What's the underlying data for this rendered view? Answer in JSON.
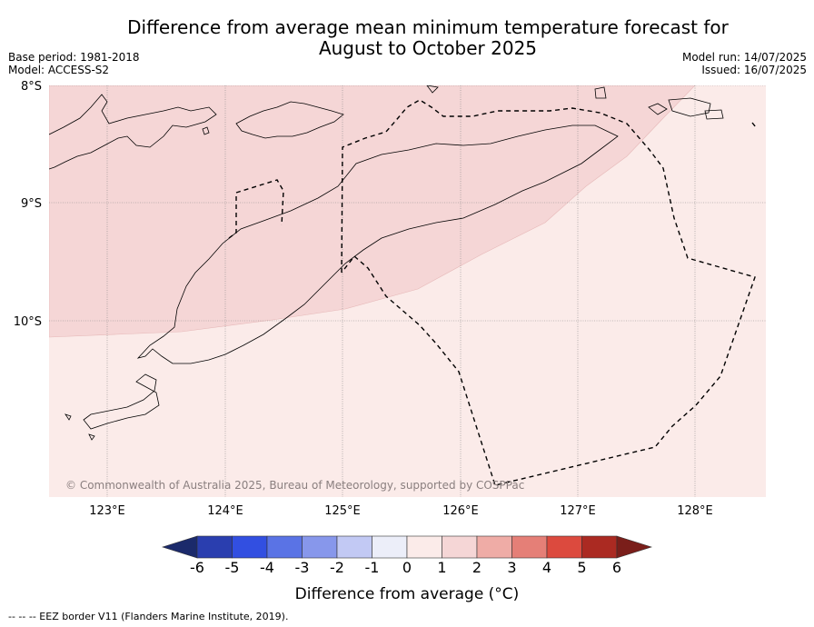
{
  "header": {
    "title_line1": "Difference from average mean minimum temperature forecast for",
    "title_line2": "August to October 2025",
    "base_period": "Base period: 1981-2018",
    "model": "Model: ACCESS-S2",
    "model_run": "Model run: 14/07/2025",
    "issued": "Issued: 16/07/2025"
  },
  "map": {
    "lat_labels": [
      "8°S",
      "9°S",
      "10°S"
    ],
    "lon_labels": [
      "123°E",
      "124°E",
      "125°E",
      "126°E",
      "127°E",
      "128°E"
    ],
    "copyright": "© Commonwealth of Australia 2025, Bureau of Meteorology, supported by COSPPac",
    "zones": [
      {
        "category": "1 to 2",
        "color": "#f5d6d6"
      },
      {
        "category": "0 to 1",
        "color": "#fbebe9"
      }
    ],
    "colors": {
      "coastline": "#000000",
      "eez_border": "#000000",
      "gridline": "#888888"
    }
  },
  "colorbar": {
    "ticks": [
      "-6",
      "-5",
      "-4",
      "-3",
      "-2",
      "-1",
      "0",
      "1",
      "2",
      "3",
      "4",
      "5",
      "6"
    ],
    "colors": [
      "#1b2a6b",
      "#2a3eaf",
      "#324fe1",
      "#5a73e5",
      "#8797eb",
      "#c2c9f4",
      "#eceef9",
      "#fbebe9",
      "#f5d6d6",
      "#efaca6",
      "#e57f77",
      "#dc4a3e",
      "#ab2a22",
      "#7a1e1a"
    ],
    "label": "Difference from average (°C)"
  },
  "footer": {
    "legend": "--  --  -- EEZ border V11 (Flanders Marine Institute, 2019)."
  }
}
